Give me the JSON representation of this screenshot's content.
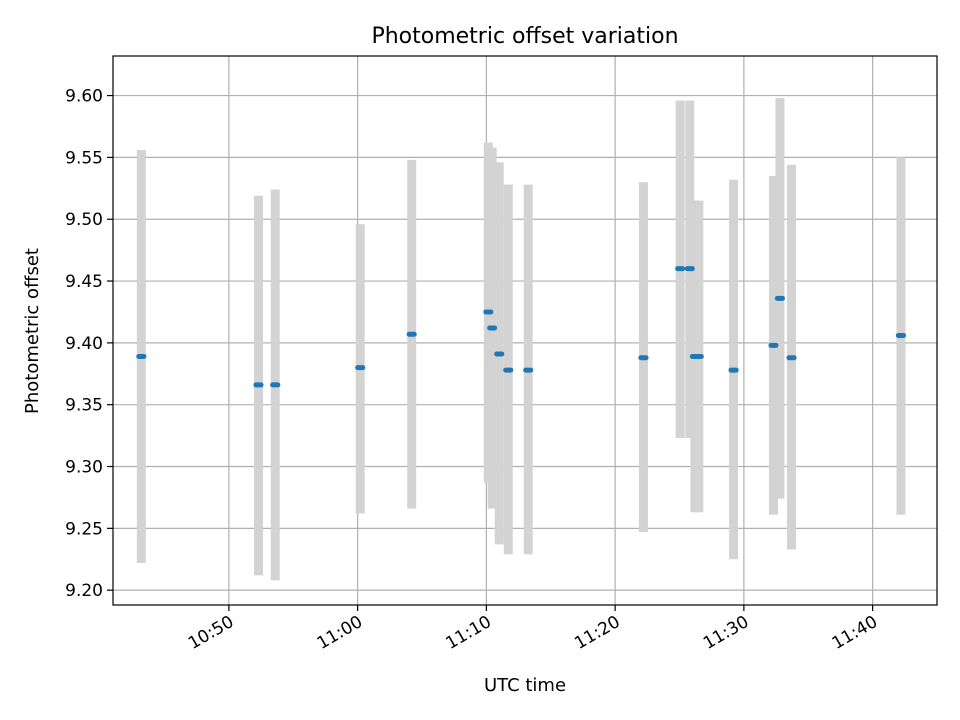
{
  "chart_data": {
    "type": "scatter",
    "title": "Photometric offset variation",
    "xlabel": "UTC time",
    "ylabel": "Photometric offset",
    "x_ticks": [
      "10:50",
      "11:00",
      "11:10",
      "11:20",
      "11:30",
      "11:40"
    ],
    "y_ticks": [
      "9.20",
      "9.25",
      "9.30",
      "9.35",
      "9.40",
      "9.45",
      "9.50",
      "9.55",
      "9.60"
    ],
    "xlim": [
      "10:41:00",
      "11:45:00"
    ],
    "ylim": [
      9.188,
      9.632
    ],
    "grid": true,
    "colors": {
      "points": "#1f77b4",
      "error_bars": "#d3d3d3"
    },
    "series": [
      {
        "points": [
          {
            "t": "10:43:00",
            "t_end": "10:43:24",
            "y": 9.389,
            "ylo": 9.222,
            "yhi": 9.556
          },
          {
            "t": "10:52:06",
            "t_end": "10:52:30",
            "y": 9.366,
            "ylo": 9.212,
            "yhi": 9.519
          },
          {
            "t": "10:53:24",
            "t_end": "10:53:48",
            "y": 9.366,
            "ylo": 9.208,
            "yhi": 9.524
          },
          {
            "t": "11:00:00",
            "t_end": "11:00:24",
            "y": 9.38,
            "ylo": 9.262,
            "yhi": 9.496
          },
          {
            "t": "11:04:00",
            "t_end": "11:04:24",
            "y": 9.407,
            "ylo": 9.266,
            "yhi": 9.548
          },
          {
            "t": "11:10:06",
            "t_end": "11:10:12",
            "y": 9.425,
            "ylo": 9.287,
            "yhi": 9.562
          },
          {
            "t": "11:10:24",
            "t_end": "11:10:30",
            "y": 9.412,
            "ylo": 9.266,
            "yhi": 9.558
          },
          {
            "t": "11:10:48",
            "t_end": "11:11:12",
            "y": 9.391,
            "ylo": 9.237,
            "yhi": 9.546
          },
          {
            "t": "11:11:36",
            "t_end": "11:11:48",
            "y": 9.378,
            "ylo": 9.229,
            "yhi": 9.528
          },
          {
            "t": "11:13:12",
            "t_end": "11:13:18",
            "y": 9.378,
            "ylo": 9.229,
            "yhi": 9.528
          },
          {
            "t": "11:22:00",
            "t_end": "11:22:24",
            "y": 9.388,
            "ylo": 9.247,
            "yhi": 9.53
          },
          {
            "t": "11:25:00",
            "t_end": "11:25:06",
            "y": 9.46,
            "ylo": 9.323,
            "yhi": 9.596
          },
          {
            "t": "11:25:42",
            "t_end": "11:25:54",
            "y": 9.46,
            "ylo": 9.323,
            "yhi": 9.596
          },
          {
            "t": "11:26:00",
            "t_end": "11:26:24",
            "y": 9.389,
            "ylo": 9.263,
            "yhi": 9.515
          },
          {
            "t": "11:26:24",
            "t_end": "11:26:36",
            "y": 9.389,
            "ylo": 9.263,
            "yhi": 9.515
          },
          {
            "t": "11:29:00",
            "t_end": "11:29:24",
            "y": 9.378,
            "ylo": 9.225,
            "yhi": 9.532
          },
          {
            "t": "11:32:12",
            "t_end": "11:32:24",
            "y": 9.398,
            "ylo": 9.261,
            "yhi": 9.535
          },
          {
            "t": "11:32:36",
            "t_end": "11:33:00",
            "y": 9.436,
            "ylo": 9.274,
            "yhi": 9.598
          },
          {
            "t": "11:33:30",
            "t_end": "11:33:54",
            "y": 9.388,
            "ylo": 9.233,
            "yhi": 9.544
          },
          {
            "t": "11:42:00",
            "t_end": "11:42:24",
            "y": 9.406,
            "ylo": 9.261,
            "yhi": 9.55
          }
        ]
      }
    ]
  }
}
